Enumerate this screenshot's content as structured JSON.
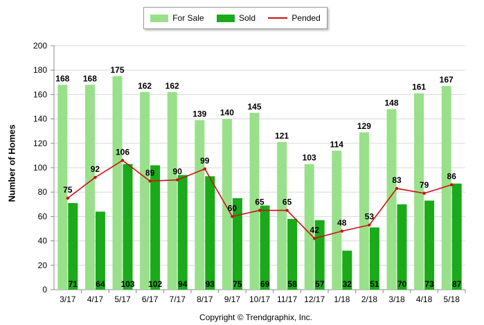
{
  "chart_data": {
    "type": "bar",
    "categories": [
      "3/17",
      "4/17",
      "5/17",
      "6/17",
      "7/17",
      "8/17",
      "9/17",
      "10/17",
      "11/17",
      "12/17",
      "1/18",
      "2/18",
      "3/18",
      "4/18",
      "5/18"
    ],
    "series": [
      {
        "name": "For Sale",
        "type": "bar",
        "color": "#99e08a",
        "values": [
          168,
          168,
          175,
          162,
          162,
          139,
          140,
          145,
          121,
          103,
          114,
          129,
          148,
          161,
          167
        ]
      },
      {
        "name": "Sold",
        "type": "bar",
        "color": "#1aaa1a",
        "values": [
          71,
          64,
          103,
          102,
          94,
          93,
          75,
          69,
          58,
          57,
          32,
          51,
          70,
          73,
          87
        ]
      },
      {
        "name": "Pended",
        "type": "line",
        "color": "#cc1111",
        "values": [
          75,
          92,
          106,
          89,
          90,
          99,
          60,
          65,
          65,
          42,
          48,
          53,
          83,
          79,
          86
        ]
      }
    ],
    "title": "",
    "xlabel": "",
    "ylabel": "Number of Homes",
    "ylim": [
      0,
      200
    ],
    "yticks": [
      0,
      20,
      40,
      60,
      80,
      100,
      120,
      140,
      160,
      180,
      200
    ],
    "grid": true,
    "legend_position": "top-center",
    "copyright": "Copyright © Trendgraphix, Inc."
  }
}
